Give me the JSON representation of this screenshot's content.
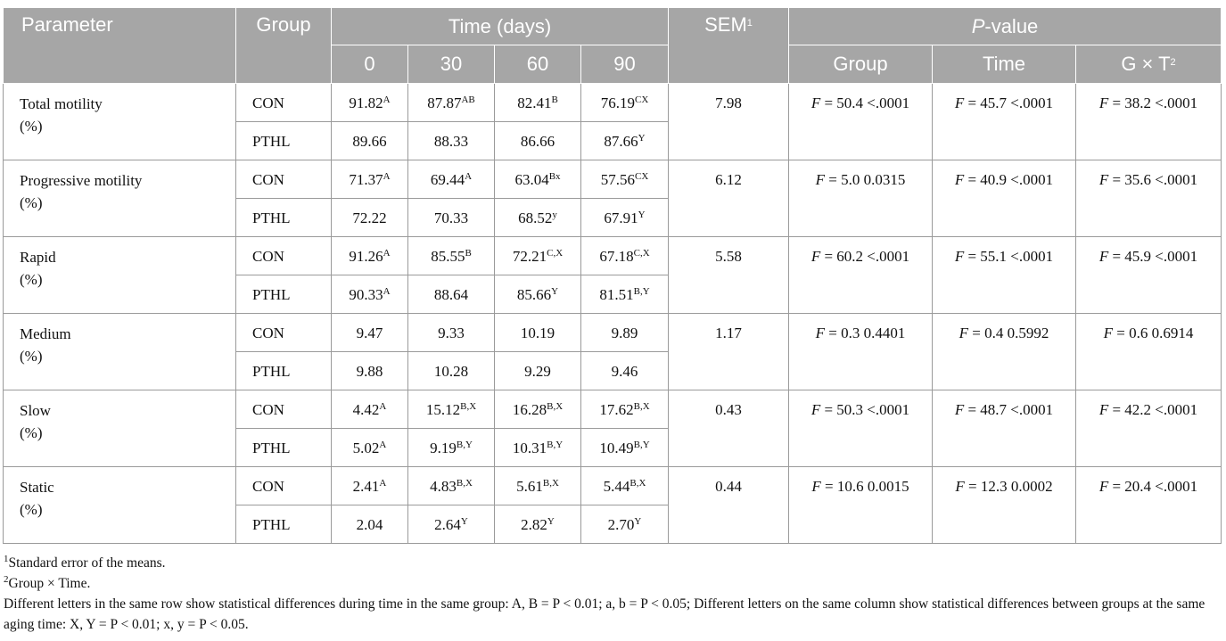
{
  "header": {
    "parameter": "Parameter",
    "group": "Group",
    "time": "Time (days)",
    "days": [
      "0",
      "30",
      "60",
      "90"
    ],
    "sem": "SEM",
    "sem_sup": "1",
    "pvalue_p": "P",
    "pvalue_rest": "-value",
    "p_group": "Group",
    "p_time": "Time",
    "p_gxt": "G × T",
    "p_gxt_sup": "2"
  },
  "rows": [
    {
      "name": "Total motility",
      "unit": "(%)",
      "sem": "7.98",
      "p_group": "= 50.4 <.0001",
      "p_time": "= 45.7 <.0001",
      "p_gxt": "= 38.2 <.0001",
      "con": {
        "group": "CON",
        "cells": [
          [
            "91.82",
            "A"
          ],
          [
            "87.87",
            "AB"
          ],
          [
            "82.41",
            "B"
          ],
          [
            "76.19",
            "CX"
          ]
        ]
      },
      "pthl": {
        "group": "PTHL",
        "cells": [
          [
            "89.66",
            ""
          ],
          [
            "88.33",
            ""
          ],
          [
            "86.66",
            ""
          ],
          [
            "87.66",
            "Y"
          ]
        ]
      }
    },
    {
      "name": "Progressive motility",
      "unit": "(%)",
      "sem": "6.12",
      "p_group": "= 5.0 0.0315",
      "p_time": "= 40.9 <.0001",
      "p_gxt": "= 35.6 <.0001",
      "con": {
        "group": "CON",
        "cells": [
          [
            "71.37",
            "A"
          ],
          [
            "69.44",
            "A"
          ],
          [
            "63.04",
            "Bx"
          ],
          [
            "57.56",
            "CX"
          ]
        ]
      },
      "pthl": {
        "group": "PTHL",
        "cells": [
          [
            "72.22",
            ""
          ],
          [
            "70.33",
            ""
          ],
          [
            "68.52",
            "y"
          ],
          [
            "67.91",
            "Y"
          ]
        ]
      }
    },
    {
      "name": "Rapid",
      "unit": "(%)",
      "sem": "5.58",
      "p_group": "= 60.2 <.0001",
      "p_time": "= 55.1 <.0001",
      "p_gxt": "= 45.9 <.0001",
      "con": {
        "group": "CON",
        "cells": [
          [
            "91.26",
            "A"
          ],
          [
            "85.55",
            "B"
          ],
          [
            "72.21",
            "C,X"
          ],
          [
            "67.18",
            "C,X"
          ]
        ]
      },
      "pthl": {
        "group": "PTHL",
        "cells": [
          [
            "90.33",
            "A"
          ],
          [
            "88.64",
            ""
          ],
          [
            "85.66",
            "Y"
          ],
          [
            "81.51",
            "B,Y"
          ]
        ]
      }
    },
    {
      "name": "Medium",
      "unit": "(%)",
      "sem": "1.17",
      "p_group": "= 0.3 0.4401",
      "p_time": "= 0.4 0.5992",
      "p_gxt": "= 0.6 0.6914",
      "con": {
        "group": "CON",
        "cells": [
          [
            "9.47",
            ""
          ],
          [
            "9.33",
            ""
          ],
          [
            "10.19",
            ""
          ],
          [
            "9.89",
            ""
          ]
        ]
      },
      "pthl": {
        "group": "PTHL",
        "cells": [
          [
            "9.88",
            ""
          ],
          [
            "10.28",
            ""
          ],
          [
            "9.29",
            ""
          ],
          [
            "9.46",
            ""
          ]
        ]
      }
    },
    {
      "name": "Slow",
      "unit": "(%)",
      "sem": "0.43",
      "p_group": "= 50.3 <.0001",
      "p_time": "= 48.7 <.0001",
      "p_gxt": "= 42.2 <.0001",
      "con": {
        "group": "CON",
        "cells": [
          [
            "4.42",
            "A"
          ],
          [
            "15.12",
            "B,X"
          ],
          [
            "16.28",
            "B,X"
          ],
          [
            "17.62",
            "B,X"
          ]
        ]
      },
      "pthl": {
        "group": "PTHL",
        "cells": [
          [
            "5.02",
            "A"
          ],
          [
            "9.19",
            "B,Y"
          ],
          [
            "10.31",
            "B,Y"
          ],
          [
            "10.49",
            "B,Y"
          ]
        ]
      }
    },
    {
      "name": "Static",
      "unit": "(%)",
      "sem": "0.44",
      "p_group": "= 10.6 0.0015",
      "p_time": "= 12.3 0.0002",
      "p_gxt": "= 20.4 <.0001",
      "con": {
        "group": "CON",
        "cells": [
          [
            "2.41",
            "A"
          ],
          [
            "4.83",
            "B,X"
          ],
          [
            "5.61",
            "B,X"
          ],
          [
            "5.44",
            "B,X"
          ]
        ]
      },
      "pthl": {
        "group": "PTHL",
        "cells": [
          [
            "2.04",
            ""
          ],
          [
            "2.64",
            "Y"
          ],
          [
            "2.82",
            "Y"
          ],
          [
            "2.70",
            "Y"
          ]
        ]
      }
    }
  ],
  "notes": {
    "n1_sup": "1",
    "n1": "Standard error of the means.",
    "n2_sup": "2",
    "n2": "Group × Time.",
    "n3": "Different letters in the same row show statistical differences during time in the same group: A, B = P < 0.01; a, b = P < 0.05; Different letters on the same column show statistical differences between groups at the same aging time: X, Y = P < 0.01; x, y = P < 0.05."
  }
}
